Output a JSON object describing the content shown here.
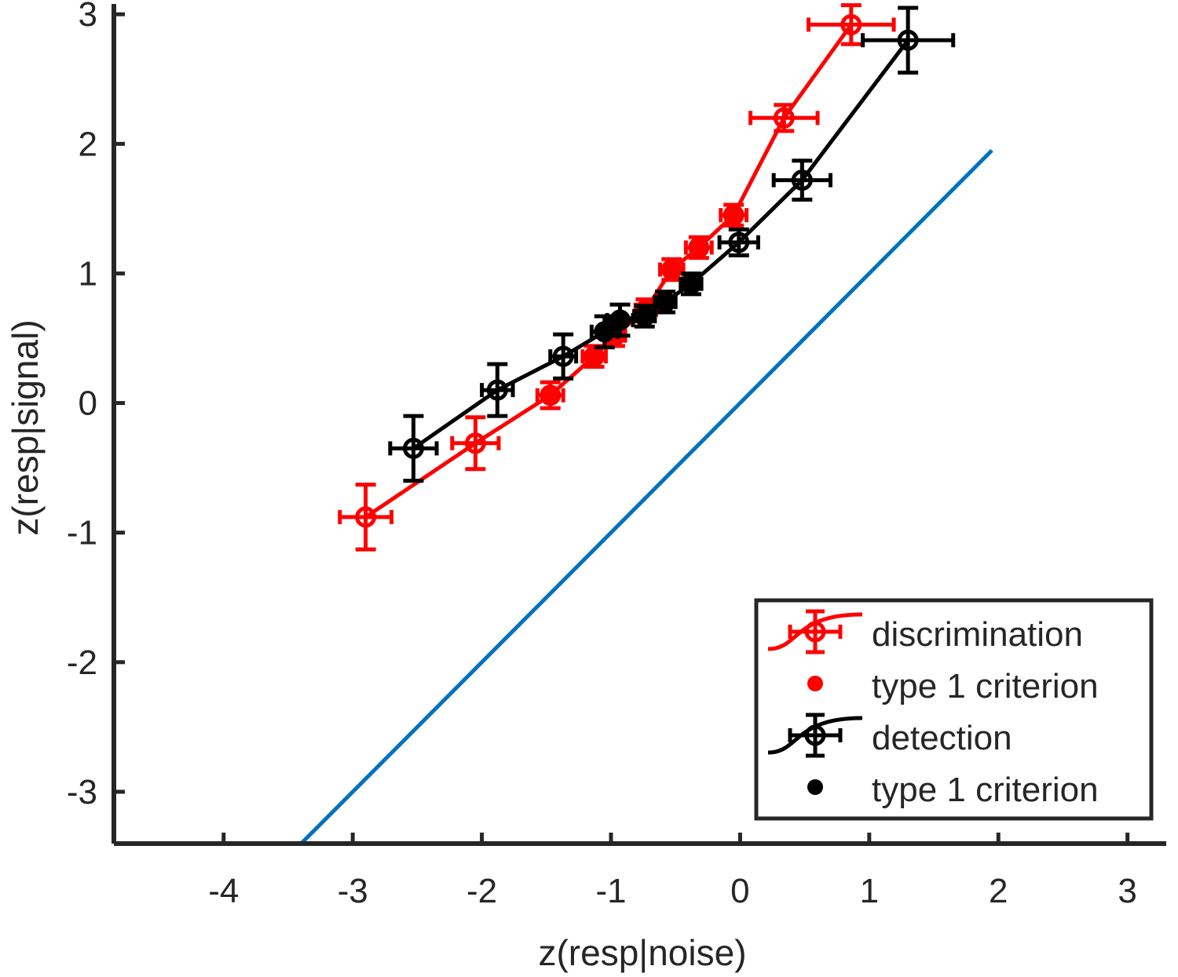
{
  "chart_data": {
    "type": "line",
    "title": "",
    "xlabel": "z(resp|noise)",
    "ylabel": "z(resp|signal)",
    "xlim": [
      -4.85,
      3.3
    ],
    "ylim": [
      -3.4,
      3.08
    ],
    "xticks": [
      -4,
      -3,
      -2,
      -1,
      0,
      1,
      2,
      3
    ],
    "yticks": [
      -3,
      -2,
      -1,
      0,
      1,
      2,
      3
    ],
    "xtick_labels": [
      "-4",
      "-3",
      "-2",
      "-1",
      "0",
      "1",
      "2",
      "3"
    ],
    "ytick_labels": [
      "-3",
      "-2",
      "-1",
      "0",
      "1",
      "2",
      "3"
    ],
    "grid": false,
    "legend_position": "bottom-right",
    "reference_line": {
      "color": "#0072BD",
      "x": [
        -3.4,
        1.95
      ],
      "y": [
        -3.4,
        1.95
      ]
    },
    "series": [
      {
        "name": "discrimination",
        "color": "#ff0000",
        "marker": "open-circle",
        "x": [
          -2.9,
          -2.05,
          -1.47,
          -1.13,
          -0.97,
          -0.73,
          -0.53,
          -0.32,
          -0.05,
          0.34,
          0.86
        ],
        "y": [
          -0.88,
          -0.31,
          0.06,
          0.36,
          0.52,
          0.72,
          1.03,
          1.2,
          1.45,
          2.2,
          2.92
        ],
        "xerr": [
          0.2,
          0.18,
          0.1,
          0.09,
          0.08,
          0.08,
          0.09,
          0.1,
          0.1,
          0.26,
          0.33
        ],
        "yerr": [
          0.25,
          0.2,
          0.1,
          0.08,
          0.08,
          0.08,
          0.08,
          0.08,
          0.08,
          0.1,
          0.15
        ]
      },
      {
        "name": "type 1 criterion",
        "color": "#ff0000",
        "marker": "filled-dot",
        "x": [
          -1.47,
          -1.13,
          -0.97,
          -0.73,
          -0.53,
          -0.32,
          -0.05
        ],
        "y": [
          0.06,
          0.36,
          0.52,
          0.72,
          1.03,
          1.2,
          1.45
        ]
      },
      {
        "name": "detection",
        "color": "#000000",
        "marker": "open-circle",
        "x": [
          -2.53,
          -1.88,
          -1.37,
          -1.05,
          -0.93,
          -0.74,
          -0.58,
          -0.38,
          -0.01,
          0.48,
          1.3
        ],
        "y": [
          -0.35,
          0.1,
          0.36,
          0.55,
          0.64,
          0.67,
          0.78,
          0.92,
          1.24,
          1.72,
          2.8
        ],
        "xerr": [
          0.18,
          0.12,
          0.1,
          0.1,
          0.1,
          0.08,
          0.08,
          0.08,
          0.15,
          0.22,
          0.35
        ],
        "yerr": [
          0.25,
          0.2,
          0.17,
          0.12,
          0.12,
          0.08,
          0.08,
          0.08,
          0.1,
          0.15,
          0.25
        ]
      },
      {
        "name": "type 1 criterion",
        "color": "#000000",
        "marker": "filled-dot",
        "x": [
          -1.05,
          -0.93,
          -0.74,
          -0.58,
          -0.38
        ],
        "y": [
          0.55,
          0.64,
          0.67,
          0.78,
          0.92
        ]
      }
    ]
  }
}
